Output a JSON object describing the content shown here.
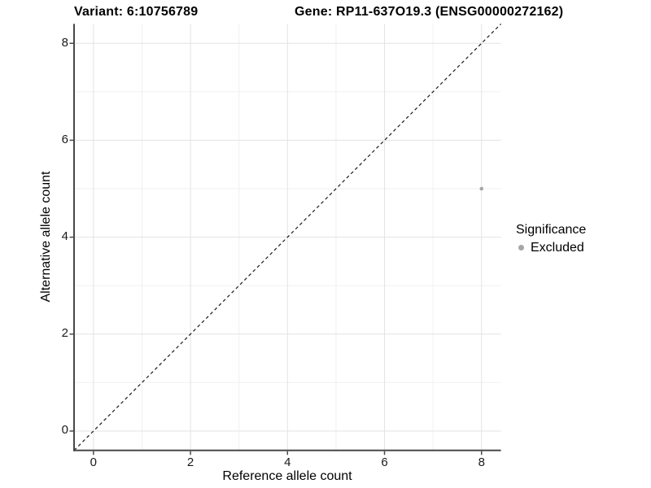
{
  "chart_data": {
    "type": "scatter",
    "title_variant": "Variant: 6:10756789",
    "title_gene": "Gene: RP11-637O19.3 (ENSG00000272162)",
    "xlabel": "Reference allele count",
    "ylabel": "Alternative allele count",
    "xlim": [
      -0.4,
      8.4
    ],
    "ylim": [
      -0.4,
      8.4
    ],
    "x_ticks": [
      0,
      2,
      4,
      6,
      8
    ],
    "y_ticks": [
      0,
      2,
      4,
      6,
      8
    ],
    "x_minor_gridlines": [
      1,
      3,
      5,
      7
    ],
    "y_minor_gridlines": [
      1,
      3,
      5,
      7
    ],
    "grid": "on",
    "identity_line": {
      "style": "dashed",
      "slope": 1,
      "intercept": 0,
      "color": "#1a1a1a"
    },
    "series": [
      {
        "name": "Excluded",
        "color": "#a6a6a6",
        "points": [
          {
            "x": 8,
            "y": 5
          }
        ]
      }
    ],
    "legend": {
      "title": "Significance",
      "position": "right",
      "entries": [
        {
          "label": "Excluded",
          "color": "#a6a6a6"
        }
      ]
    },
    "colors": {
      "background": "#ffffff",
      "grid_major": "#e3e3e3",
      "grid_minor": "#f0f0f0",
      "axis_line": "#484848",
      "tick_label": "#1a1a1a"
    }
  }
}
